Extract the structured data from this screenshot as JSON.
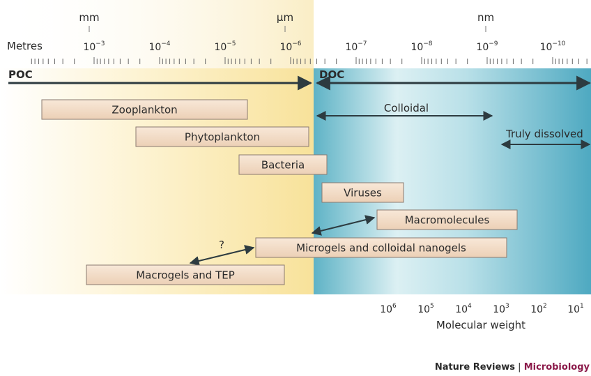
{
  "scale": {
    "units": [
      "mm",
      "µm",
      "nm"
    ],
    "axis_label": "Metres",
    "powers": [
      {
        "base": "10",
        "exp": "−3"
      },
      {
        "base": "10",
        "exp": "−4"
      },
      {
        "base": "10",
        "exp": "−5"
      },
      {
        "base": "10",
        "exp": "−6"
      },
      {
        "base": "10",
        "exp": "−7"
      },
      {
        "base": "10",
        "exp": "−8"
      },
      {
        "base": "10",
        "exp": "−9"
      },
      {
        "base": "10",
        "exp": "−10"
      }
    ]
  },
  "regions": {
    "left": "POC",
    "right": "DOC"
  },
  "ranges": {
    "colloidal": "Colloidal",
    "dissolved": "Truly dissolved"
  },
  "boxes": [
    "Zooplankton",
    "Phytoplankton",
    "Bacteria",
    "Viruses",
    "Macromolecules",
    "Microgels and colloidal nanogels",
    "Macrogels and TEP"
  ],
  "question": "?",
  "molecular_weight": {
    "powers": [
      {
        "base": "10",
        "exp": "6"
      },
      {
        "base": "10",
        "exp": "5"
      },
      {
        "base": "10",
        "exp": "4"
      },
      {
        "base": "10",
        "exp": "3"
      },
      {
        "base": "10",
        "exp": "2"
      },
      {
        "base": "10",
        "exp": "1"
      }
    ],
    "label": "Molecular weight"
  },
  "credit": {
    "journal": "Nature Reviews",
    "separator": "|",
    "section": "Microbiology"
  }
}
